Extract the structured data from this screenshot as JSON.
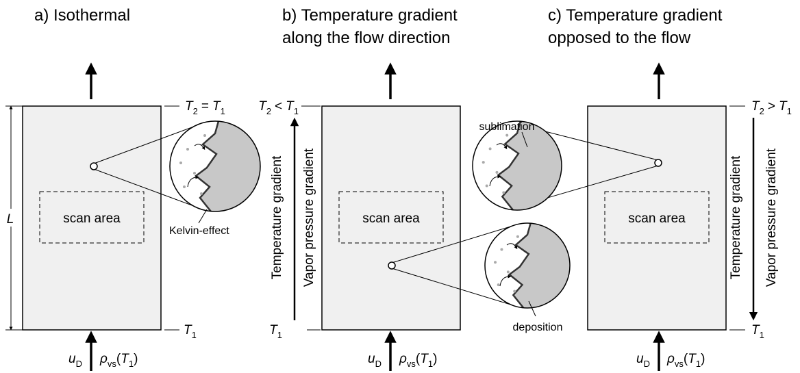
{
  "panels": [
    {
      "title": [
        "a) Isothermal"
      ],
      "top_label": {
        "left_symbol": "T",
        "left_subscript": "2",
        "relation": "=",
        "right_symbol": "T",
        "right_subscript": "1"
      },
      "bottom_label": {
        "symbol": "T",
        "subscript": "1"
      },
      "scan_area": "scan area",
      "inflow": {
        "velocity_symbol": "u",
        "velocity_subscript": "D",
        "density_symbol": "ρ",
        "density_subscript": "vs",
        "open": "(",
        "argument_symbol": "T",
        "argument_subscript": "1",
        "close": ")"
      }
    },
    {
      "title": [
        "b) Temperature gradient",
        "along the flow direction"
      ],
      "top_label": {
        "left_symbol": "T",
        "left_subscript": "2",
        "relation": "<",
        "right_symbol": "T",
        "right_subscript": "1"
      },
      "bottom_label": {
        "symbol": "T",
        "subscript": "1"
      },
      "scan_area": "scan area",
      "gradient_labels": [
        "Temperature gradient",
        "Vapor pressure gradient"
      ],
      "inflow": {
        "velocity_symbol": "u",
        "velocity_subscript": "D",
        "density_symbol": "ρ",
        "density_subscript": "vs",
        "open": "(",
        "argument_symbol": "T",
        "argument_subscript": "1",
        "close": ")"
      }
    },
    {
      "title": [
        "c) Temperature gradient",
        "opposed to the flow"
      ],
      "top_label": {
        "left_symbol": "T",
        "left_subscript": "2",
        "relation": ">",
        "right_symbol": "T",
        "right_subscript": "1"
      },
      "bottom_label": {
        "symbol": "T",
        "subscript": "1"
      },
      "scan_area": "scan area",
      "gradient_labels": [
        "Temperature gradient",
        "Vapor pressure gradient"
      ],
      "inflow": {
        "velocity_symbol": "u",
        "velocity_subscript": "D",
        "density_symbol": "ρ",
        "density_subscript": "vs",
        "open": "(",
        "argument_symbol": "T",
        "argument_subscript": "1",
        "close": ")"
      }
    }
  ],
  "dimension_label": "L",
  "annotations": {
    "kelvin": "Kelvin-effect",
    "sublimation": "sublimation",
    "deposition": "deposition"
  }
}
